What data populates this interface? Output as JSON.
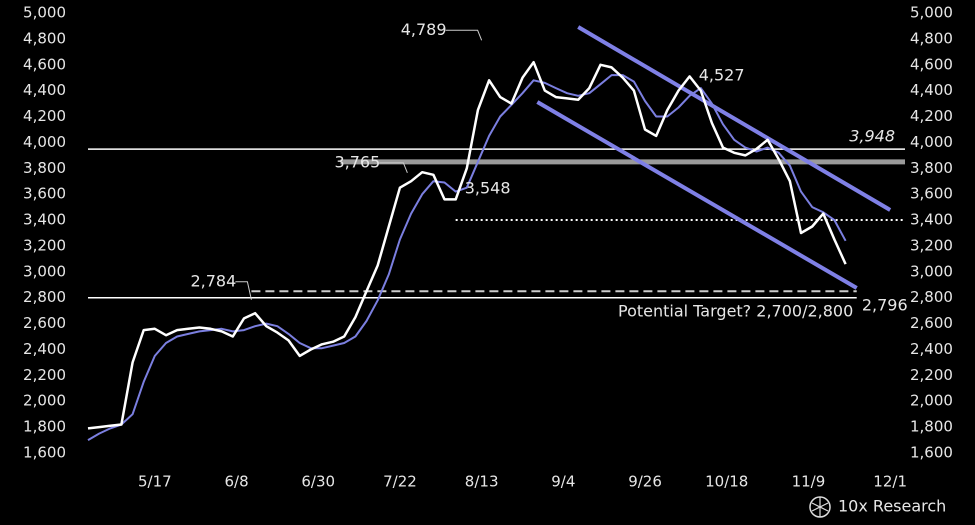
{
  "chart_data": {
    "type": "line",
    "x": [
      "4/29",
      "5/2",
      "5/5",
      "5/8",
      "5/11",
      "5/14",
      "5/17",
      "5/20",
      "5/23",
      "5/26",
      "5/29",
      "6/1",
      "6/4",
      "6/7",
      "6/10",
      "6/13",
      "6/16",
      "6/19",
      "6/22",
      "6/25",
      "6/28",
      "7/1",
      "7/4",
      "7/7",
      "7/10",
      "7/13",
      "7/16",
      "7/19",
      "7/22",
      "7/25",
      "7/28",
      "7/31",
      "8/3",
      "8/6",
      "8/9",
      "8/12",
      "8/15",
      "8/18",
      "8/21",
      "8/24",
      "8/27",
      "8/30",
      "9/2",
      "9/5",
      "9/8",
      "9/11",
      "9/14",
      "9/17",
      "9/20",
      "9/23",
      "9/26",
      "9/29",
      "10/2",
      "10/5",
      "10/8",
      "10/11",
      "10/14",
      "10/17",
      "10/20",
      "10/23",
      "10/26",
      "10/29",
      "11/1",
      "11/4",
      "11/7",
      "11/10",
      "11/13",
      "11/16",
      "11/19"
    ],
    "series": [
      {
        "color": "#ffffff",
        "values": [
          1790,
          1800,
          1810,
          1820,
          2300,
          2550,
          2560,
          2510,
          2550,
          2560,
          2570,
          2560,
          2540,
          2500,
          2640,
          2680,
          2580,
          2530,
          2470,
          2350,
          2400,
          2440,
          2460,
          2500,
          2650,
          2850,
          3050,
          3350,
          3650,
          3700,
          3770,
          3750,
          3560,
          3560,
          3800,
          4250,
          4480,
          4350,
          4300,
          4500,
          4620,
          4400,
          4350,
          4340,
          4330,
          4420,
          4600,
          4580,
          4500,
          4400,
          4100,
          4050,
          4250,
          4400,
          4510,
          4400,
          4150,
          3960,
          3920,
          3900,
          3950,
          4020,
          3870,
          3700,
          3300,
          3350,
          3450,
          3250,
          3060
        ]
      },
      {
        "color": "#7b7fe0",
        "values": [
          1700,
          1750,
          1790,
          1820,
          1900,
          2150,
          2350,
          2450,
          2500,
          2520,
          2540,
          2550,
          2560,
          2540,
          2550,
          2580,
          2600,
          2580,
          2520,
          2450,
          2410,
          2410,
          2430,
          2450,
          2500,
          2620,
          2780,
          2980,
          3250,
          3450,
          3600,
          3700,
          3690,
          3620,
          3650,
          3850,
          4050,
          4200,
          4290,
          4380,
          4480,
          4460,
          4420,
          4380,
          4360,
          4380,
          4450,
          4520,
          4520,
          4470,
          4320,
          4200,
          4200,
          4270,
          4360,
          4420,
          4300,
          4140,
          4020,
          3960,
          3930,
          3960,
          3920,
          3820,
          3620,
          3500,
          3460,
          3400,
          3240
        ]
      }
    ],
    "xlim": [
      "4/29",
      "12/5"
    ],
    "xticks": [
      "5/17",
      "6/8",
      "6/30",
      "7/22",
      "8/13",
      "9/4",
      "9/26",
      "10/18",
      "11/9",
      "12/1"
    ],
    "ylim": [
      1600,
      5000
    ],
    "yticks": [
      {
        "value": 1600,
        "label": "1,600"
      },
      {
        "value": 1800,
        "label": "1,800"
      },
      {
        "value": 2000,
        "label": "2,000"
      },
      {
        "value": 2200,
        "label": "2,200"
      },
      {
        "value": 2400,
        "label": "2,400"
      },
      {
        "value": 2600,
        "label": "2,600"
      },
      {
        "value": 2800,
        "label": "2,800"
      },
      {
        "value": 3000,
        "label": "3,000"
      },
      {
        "value": 3200,
        "label": "3,200"
      },
      {
        "value": 3400,
        "label": "3,400"
      },
      {
        "value": 3600,
        "label": "3,600"
      },
      {
        "value": 3800,
        "label": "3,800"
      },
      {
        "value": 4000,
        "label": "4,000"
      },
      {
        "value": 4200,
        "label": "4,200"
      },
      {
        "value": 4400,
        "label": "4,400"
      },
      {
        "value": 4600,
        "label": "4,600"
      },
      {
        "value": 4800,
        "label": "4,800"
      },
      {
        "value": 5000,
        "label": "5,000"
      }
    ],
    "levels": [
      {
        "value": 3948,
        "start": "4/29",
        "end": "12/5",
        "style": "solid",
        "color": "#ffffff"
      },
      {
        "value": 3850,
        "start": "7/6",
        "end": "12/5",
        "style": "band",
        "color": "#9a9a9a"
      },
      {
        "value": 3400,
        "start": "8/6",
        "end": "12/5",
        "style": "dotted",
        "color": "#ffffff"
      },
      {
        "value": 2850,
        "start": "6/12",
        "end": "11/22",
        "style": "dashed",
        "color": "#cccccc"
      },
      {
        "value": 2800,
        "start": "4/29",
        "end": "11/22",
        "style": "solid",
        "color": "#ffffff"
      }
    ],
    "channels": [
      {
        "start": "9/8",
        "end": "12/1",
        "from": 4892,
        "to": 3478,
        "color": "#7f80e6"
      },
      {
        "start": "8/28",
        "end": "11/22",
        "from": 4312,
        "to": 2875,
        "color": "#7f80e6"
      }
    ],
    "annotations": [
      {
        "x": "8/13",
        "value": 4789,
        "label": "4,789"
      },
      {
        "x": "7/24",
        "value": 3765,
        "label": "3,765"
      },
      {
        "x": "8/6",
        "value": 3548,
        "label": "3,548"
      },
      {
        "x": "10/8",
        "value": 4527,
        "label": "4,527"
      },
      {
        "x": "6/12",
        "value": 2784,
        "label": "2,784"
      },
      {
        "x": "12/5",
        "value": 3948,
        "label": "3,948"
      },
      {
        "x": "11/22",
        "value": 2796,
        "label": "2,796"
      }
    ],
    "target_note": "Potential Target? 2,700/2,800",
    "brand": "10x Research"
  }
}
